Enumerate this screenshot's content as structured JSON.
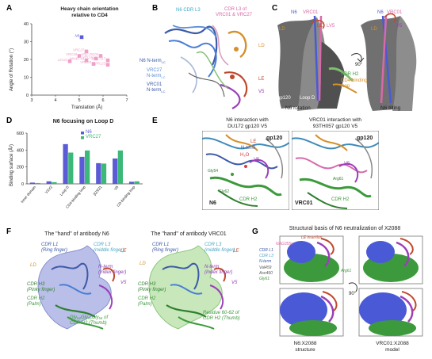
{
  "panel_letters": {
    "A": "A",
    "B": "B",
    "C": "C",
    "D": "D",
    "E": "E",
    "F": "F",
    "G": "G"
  },
  "panelA": {
    "title": "Heavy chain  orientation\nrelative to CD4",
    "ylabel": "Angle of Rotation (°)",
    "xlabel": "Translation (Å)",
    "xticks": [
      "3",
      "4",
      "5",
      "6",
      "7"
    ],
    "yticks": [
      "0",
      "10",
      "20",
      "30",
      "40"
    ]
  },
  "chart_data": [
    {
      "type": "scatter",
      "title": "Heavy chain  orientation relative to CD4",
      "xlabel": "Translation (Å)",
      "ylabel": "Angle of Rotation (°)",
      "xlim": [
        3,
        7
      ],
      "ylim": [
        0,
        40
      ],
      "grid": false,
      "points": [
        {
          "label": "N6",
          "x": 5.1,
          "y": 32.5,
          "color": "#5b5bd6"
        },
        {
          "label": "VRC27",
          "x": 5.3,
          "y": 24.5,
          "color": "#ef9fc8"
        },
        {
          "label": "VRC18",
          "x": 5.0,
          "y": 22.0,
          "color": "#ef9fc8"
        },
        {
          "label": "VRC-PG04",
          "x": 5.9,
          "y": 22.0,
          "color": "#ef9fc8"
        },
        {
          "label": "VRC01",
          "x": 5.7,
          "y": 20.5,
          "color": "#ef9fc8"
        },
        {
          "label": "12A21",
          "x": 4.6,
          "y": 19.0,
          "color": "#ef9fc8"
        },
        {
          "label": "NIH45-46",
          "x": 5.3,
          "y": 19.5,
          "color": "#ef9fc8"
        },
        {
          "label": "3BNC117",
          "x": 6.2,
          "y": 19.5,
          "color": "#ef9fc8"
        },
        {
          "label": "VRC03",
          "x": 5.6,
          "y": 17.5,
          "color": "#ef9fc8"
        },
        {
          "label": "VRC23",
          "x": 6.2,
          "y": 17.0,
          "color": "#ef9fc8"
        }
      ]
    },
    {
      "type": "bar",
      "title": "N6 focusing on Loop D",
      "ylabel": "Binding surface (Å²)",
      "ylim": [
        0,
        600
      ],
      "yticks": [
        0,
        200,
        400,
        600
      ],
      "categories": [
        "Inner domain",
        "V1V2",
        "Loop D",
        "CD4-binding loop",
        "β23/21",
        "V5",
        "CD-binding loop"
      ],
      "series": [
        {
          "name": "N6",
          "color": "#5b5bd6",
          "values": [
            15,
            30,
            470,
            320,
            245,
            300,
            25
          ]
        },
        {
          "name": "VRC27",
          "color": "#3cb878",
          "values": [
            10,
            20,
            370,
            395,
            240,
            395,
            30
          ]
        }
      ]
    }
  ],
  "panelB": {
    "n6_cdr_l3": "N6 CDR L3",
    "cdr_l3_of": "CDR L3 of",
    "vrc01_vrc27": "VRC01 & VRC27",
    "n6_nterm": "N6 N-term",
    "vrc27": "VRC27",
    "nterm_lc": "N-term",
    "vrc01": "VRC01",
    "nterm_lc2": "N-term",
    "ld": "LD",
    "le": "LE",
    "v5": "V5",
    "sub": "LC"
  },
  "panelC": {
    "n6": "N6",
    "vrc01": "VRC01",
    "ld": "LD",
    "le": "LE",
    "lv5": "LV5",
    "n6b": "N6",
    "vrc01b": "VRC01",
    "ldb": "LD",
    "v5b": "V5",
    "rot": "90°",
    "cdr_h2": "CDR H2",
    "cd4_loop": "CD4-binding\nloop",
    "gp120": "gp120",
    "loopd": "Loop D",
    "n6_rotation": "N6 rotation",
    "n6_tilting": "N6 tilting"
  },
  "panelD": {
    "title": "N6 focusing on Loop D",
    "legend_n6": "N6",
    "legend_vrc27": "VRC27"
  },
  "panelE": {
    "left_title": "N6 interaction with\nDU172 gp120 V5",
    "right_title": "VRC01 interaction with\n93TH057 gp120 V5",
    "gp120_left": "gp120",
    "gp120_right": "gp120",
    "n6": "N6",
    "vrc01": "VRC01",
    "cdr_h2": "CDR H2",
    "cdr_h2_b": "CDR H2",
    "h2o": "H₂O",
    "le": "LE",
    "v5": "V5",
    "v5b": "V5",
    "nterm": "N-term",
    "gly54": "Gly54",
    "arg61": "Arg61",
    "gly62": "Gly62"
  },
  "panelF": {
    "left_title": "The \"hand\" of antibody N6",
    "right_title": "The \"hand\" of antibody VRC01",
    "l_cdr_l1": "CDR L1\n(Ring finger)",
    "l_cdr_l3": "CDR L3\n(middle finger)",
    "l_ld": "LD",
    "l_le": "LE",
    "l_nterm": "N-term\n(Index finger)",
    "l_v5": "V5",
    "l_cdr_h3": "CDR H3\n(Pinky finger)",
    "l_cdr_h2": "CDR H2\n(Palm)",
    "l_thumb": "Gly₅₄Gly₅₅Gly₅₆ of\nCDR H2 (Thumb)",
    "r_cdr_l1": "CDR L1\n(Ring finger)",
    "r_cdr_l3": "CDR L3\n(middle finger)",
    "r_ld": "LD",
    "r_le": "LE",
    "r_nterm": "N-term\n(Index finger)",
    "r_v5": "V5",
    "r_cdr_h3": "CDR H3\n(Pinky finger)",
    "r_cdr_h2": "CDR H2\n(Palm)",
    "r_thumb": "Residue 60-62 of\nCDR H2 (Thumb)"
  },
  "panelG": {
    "title": "Structural basis of N6 neutralization of X2088",
    "le_insertion": "LE insertion",
    "nag": "NAG355c",
    "cdr_l1": "CDR L1",
    "cdr_l3": "CDR L3",
    "nterm": "N-term",
    "val459": "Val459",
    "asn460": "Asn460",
    "gly61": "Gly61",
    "arg61": "Arg61",
    "rot": "90°",
    "caption_left": "N6:X2088\nstructure",
    "caption_right": "VRC01:X2088\nmodel"
  }
}
